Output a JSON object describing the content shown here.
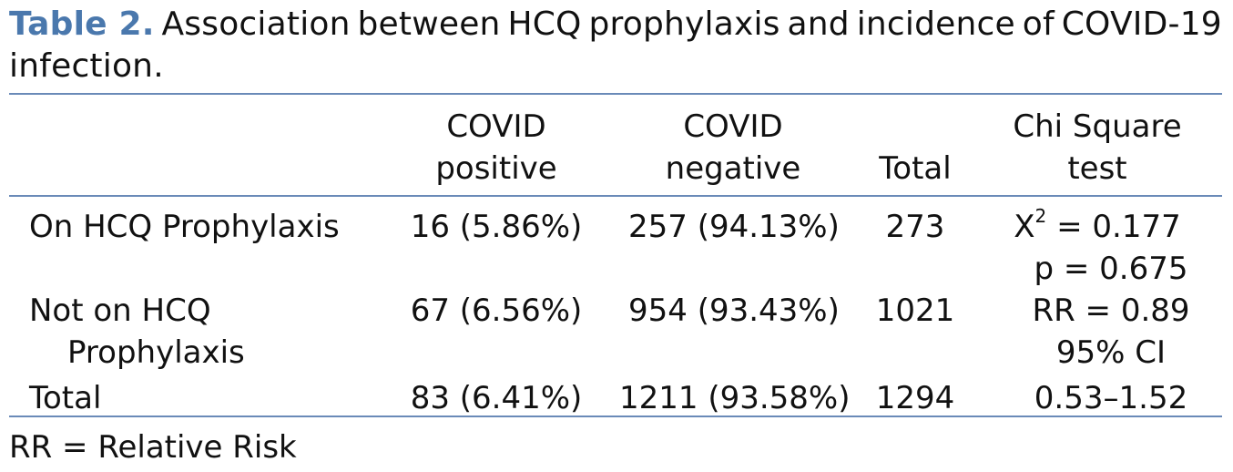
{
  "caption": {
    "label": "Table 2.",
    "text_words": [
      "Association",
      "between",
      "HCQ",
      "prophylaxis",
      "and",
      "incidence",
      "of",
      "COVID-19"
    ],
    "text_line2": "infection."
  },
  "colors": {
    "accent": "#4a78ad",
    "rule": "#6a8ab8",
    "text": "#111111"
  },
  "table": {
    "headers": {
      "covid_positive": [
        "COVID",
        "positive"
      ],
      "covid_negative": [
        "COVID",
        "negative"
      ],
      "total": "Total",
      "chi_square": [
        "Chi Square",
        "test"
      ]
    },
    "rows": [
      {
        "label": [
          "On HCQ Prophylaxis"
        ],
        "positive": "16 (5.86%)",
        "negative": "257 (94.13%)",
        "total": "273"
      },
      {
        "label": [
          "Not on HCQ",
          "Prophylaxis"
        ],
        "positive": "67 (6.56%)",
        "negative": "954 (93.43%)",
        "total": "1021"
      },
      {
        "label": [
          "Total"
        ],
        "positive": "83 (6.41%)",
        "negative": "1211 (93.58%)",
        "total": "1294"
      }
    ],
    "chi_square_result": {
      "x_symbol": "X",
      "superscript": "2",
      "x_value": " = 0.177",
      "p": "p = 0.675",
      "rr": "RR = 0.89",
      "ci_label": "95% CI",
      "ci_value": "0.53–1.52"
    }
  },
  "footnote": "RR = Relative Risk"
}
